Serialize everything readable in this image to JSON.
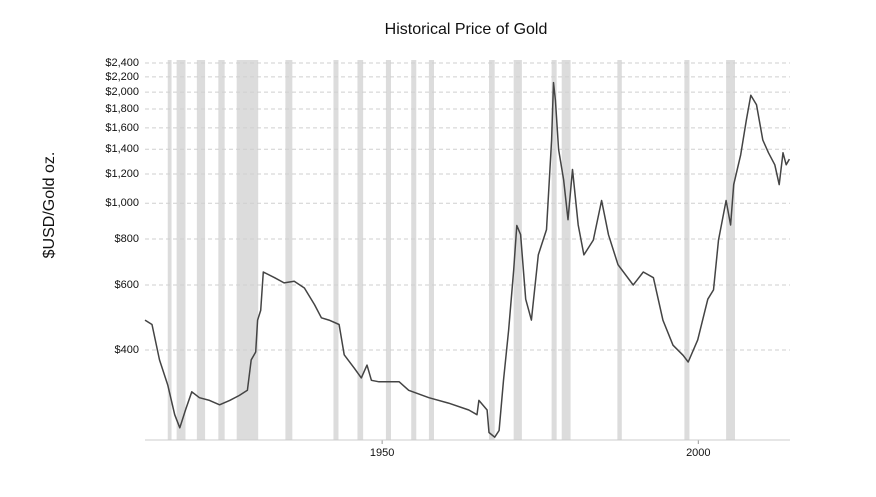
{
  "chart_data": {
    "type": "line",
    "title": "Historical Price of Gold",
    "y_label": "$USD/Gold oz.",
    "log_scale_y": true,
    "grid": true,
    "color": "#444444",
    "shade_color": "#dcdcdc",
    "xlim": [
      1912.5,
      2014.5
    ],
    "ylim": [
      228,
      2445
    ],
    "xticks": [
      1950,
      2000
    ],
    "yticks": [
      {
        "value": 400,
        "label": "$400"
      },
      {
        "value": 600,
        "label": "$600"
      },
      {
        "value": 800,
        "label": "$800"
      },
      {
        "value": 1000,
        "label": "$1,000"
      },
      {
        "value": 1200,
        "label": "$1,200"
      },
      {
        "value": 1400,
        "label": "$1,400"
      },
      {
        "value": 1600,
        "label": "$1,600"
      },
      {
        "value": 1800,
        "label": "$1,800"
      },
      {
        "value": 2000,
        "label": "$2,000"
      },
      {
        "value": 2200,
        "label": "$2,200"
      },
      {
        "value": 2400,
        "label": "$2,400"
      }
    ],
    "shaded_ranges": [
      [
        1916.1,
        1916.7
      ],
      [
        1917.5,
        1918.9
      ],
      [
        1920.7,
        1922.0
      ],
      [
        1924.1,
        1925.1
      ],
      [
        1927.0,
        1930.4
      ],
      [
        1934.7,
        1935.8
      ],
      [
        1942.3,
        1943.1
      ],
      [
        1946.1,
        1947.0
      ],
      [
        1950.6,
        1951.4
      ],
      [
        1954.6,
        1955.4
      ],
      [
        1957.4,
        1958.2
      ],
      [
        1966.9,
        1967.8
      ],
      [
        1970.8,
        1972.1
      ],
      [
        1976.8,
        1977.6
      ],
      [
        1978.4,
        1979.8
      ],
      [
        1987.2,
        1987.9
      ],
      [
        1997.8,
        1998.6
      ],
      [
        2004.4,
        2005.8
      ]
    ],
    "x": [
      1912.5,
      1913.6,
      1914.8,
      1916.1,
      1917.2,
      1918.0,
      1918.9,
      1919.9,
      1921.1,
      1922.7,
      1924.3,
      1925.9,
      1927.4,
      1928.7,
      1929.3,
      1930.0,
      1930.3,
      1930.8,
      1931.2,
      1933.0,
      1934.5,
      1936.1,
      1937.7,
      1939.3,
      1940.4,
      1941.6,
      1943.2,
      1944.0,
      1945.6,
      1946.7,
      1947.6,
      1948.3,
      1949.5,
      1952.7,
      1954.2,
      1957.4,
      1960.5,
      1963.7,
      1965.0,
      1965.3,
      1966.6,
      1966.9,
      1967.8,
      1968.5,
      1969.2,
      1970.0,
      1970.8,
      1971.3,
      1971.9,
      1972.7,
      1973.6,
      1974.7,
      1976.0,
      1976.8,
      1977.1,
      1977.4,
      1977.9,
      1978.7,
      1979.4,
      1980.1,
      1981.0,
      1981.9,
      1983.4,
      1984.7,
      1985.8,
      1987.3,
      1989.7,
      1991.3,
      1992.9,
      1994.4,
      1996.0,
      1997.6,
      1998.4,
      1999.9,
      2001.5,
      2002.4,
      2003.2,
      2004.4,
      2005.1,
      2005.6,
      2006.7,
      2007.6,
      2008.3,
      2009.2,
      2010.2,
      2011.1,
      2012.1,
      2012.8,
      2013.4,
      2013.9,
      2014.4
    ],
    "values": [
      482,
      469,
      376,
      321,
      267,
      246,
      275,
      308,
      297,
      292,
      284,
      292,
      301,
      311,
      376,
      395,
      482,
      512,
      651,
      628,
      608,
      614,
      589,
      531,
      489,
      482,
      469,
      388,
      357,
      336,
      364,
      331,
      328,
      328,
      311,
      297,
      287,
      275,
      267,
      292,
      275,
      239,
      232,
      242,
      331,
      452,
      660,
      870,
      822,
      549,
      482,
      724,
      848,
      1484,
      2123,
      1904,
      1398,
      1159,
      902,
      1234,
      873,
      724,
      794,
      1017,
      821,
      681,
      600,
      651,
      628,
      482,
      412,
      387,
      371,
      426,
      549,
      582,
      794,
      1017,
      873,
      1123,
      1353,
      1684,
      1963,
      1848,
      1484,
      1370,
      1271,
      1123,
      1370,
      1271,
      1317
    ]
  }
}
